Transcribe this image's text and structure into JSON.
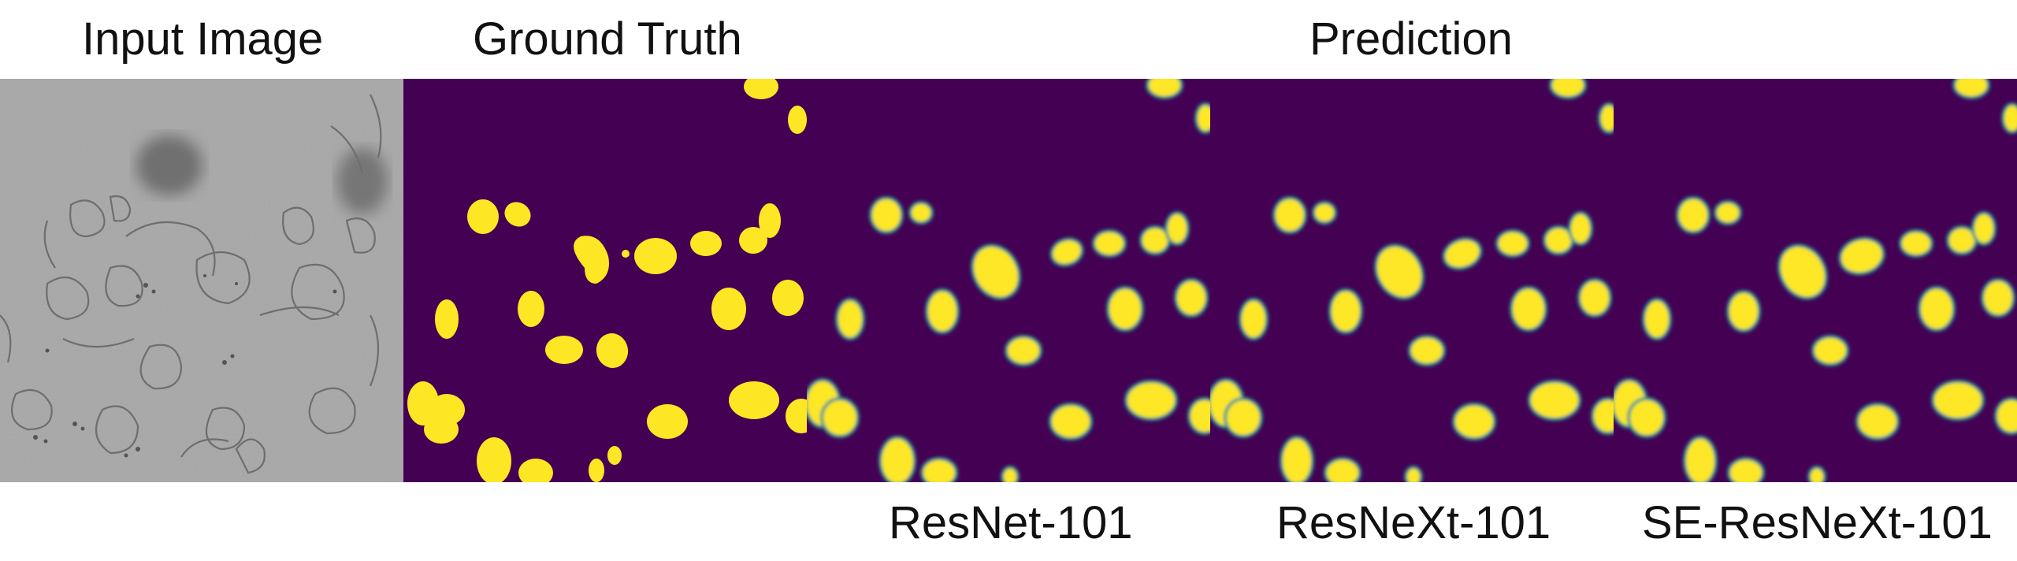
{
  "header": {
    "input_label": "Input Image",
    "gt_label": "Ground Truth",
    "pred_label": "Prediction"
  },
  "models": [
    "ResNet-101",
    "ResNeXt-101",
    "SE-ResNeXt-101"
  ],
  "colors": {
    "background": "#ffffff",
    "mask_background": "#440154",
    "mask_foreground": "#fde725",
    "edge": "#21918c",
    "input_gray": "#a6a6a6"
  }
}
